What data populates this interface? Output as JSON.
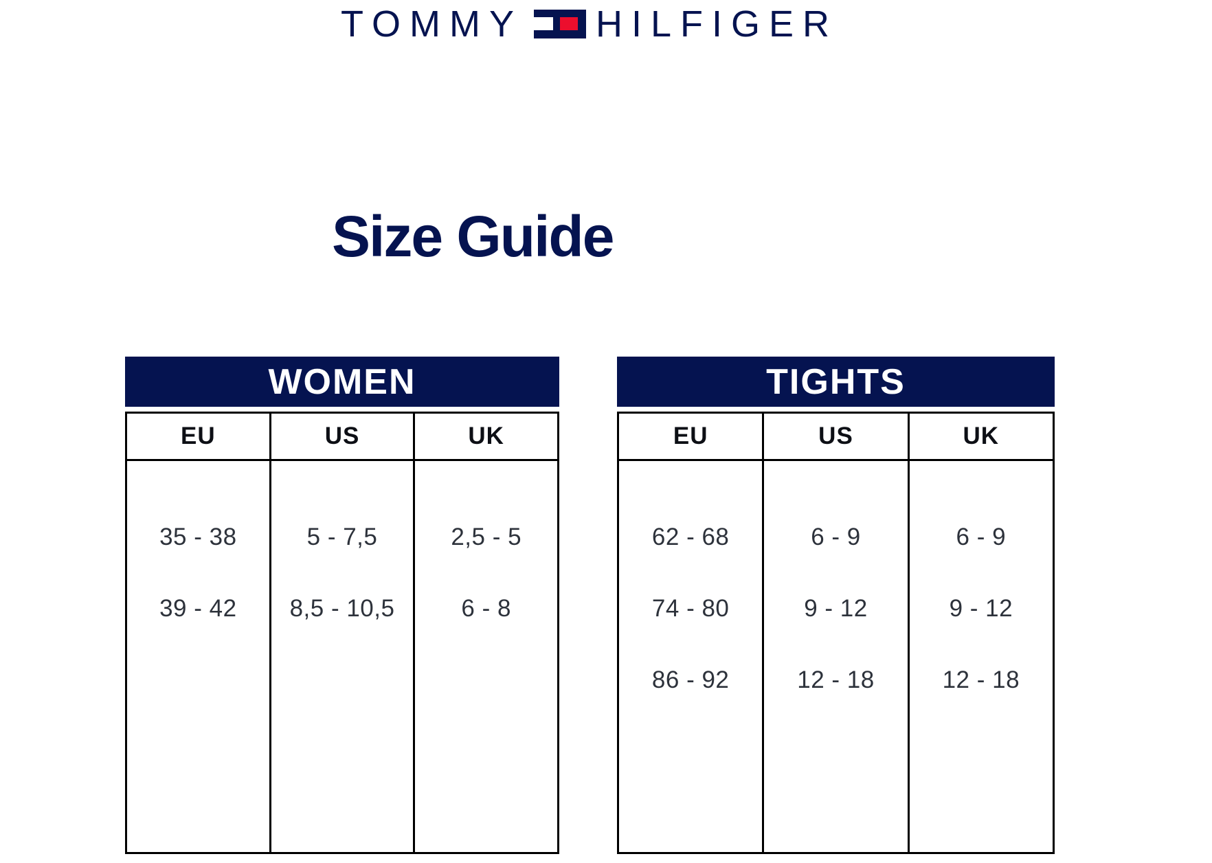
{
  "brand": {
    "wordmark_left": "TOMMY",
    "wordmark_right": "HILFIGER",
    "flag_icon": "tommy-hilfiger-flag"
  },
  "title": "Size Guide",
  "colors": {
    "navy": "#051350",
    "red": "#ec0e2d",
    "border": "#000000"
  },
  "tables": [
    {
      "title": "WOMEN",
      "columns": [
        "EU",
        "US",
        "UK"
      ],
      "rows": [
        [
          "35 - 38",
          "5 - 7,5",
          "2,5 - 5"
        ],
        [
          "39 - 42",
          "8,5 - 10,5",
          "6 - 8"
        ]
      ]
    },
    {
      "title": "TIGHTS",
      "columns": [
        "EU",
        "US",
        "UK"
      ],
      "rows": [
        [
          "62 - 68",
          "6 - 9",
          "6 - 9"
        ],
        [
          "74 - 80",
          "9 - 12",
          "9 - 12"
        ],
        [
          "86 - 92",
          "12 - 18",
          "12 - 18"
        ]
      ]
    }
  ]
}
